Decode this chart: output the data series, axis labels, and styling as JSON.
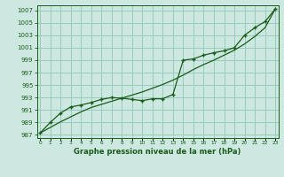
{
  "xlabel": "Graphe pression niveau de la mer (hPa)",
  "background_color": "#cce8e0",
  "grid_color": "#99ccbb",
  "line_color": "#1a5c1a",
  "x_values": [
    0,
    1,
    2,
    3,
    4,
    5,
    6,
    7,
    8,
    9,
    10,
    11,
    12,
    13,
    14,
    15,
    16,
    17,
    18,
    19,
    20,
    21,
    22,
    23
  ],
  "y_data": [
    987.3,
    989.0,
    990.5,
    991.5,
    991.8,
    992.2,
    992.7,
    993.0,
    992.9,
    992.7,
    992.5,
    992.8,
    992.8,
    993.5,
    999.0,
    999.2,
    999.8,
    1000.2,
    1000.5,
    1001.0,
    1003.0,
    1004.2,
    1005.2,
    1007.2
  ],
  "y_trend": [
    987.3,
    988.2,
    989.1,
    989.9,
    990.7,
    991.4,
    991.9,
    992.4,
    992.9,
    993.4,
    993.9,
    994.5,
    995.1,
    995.8,
    996.6,
    997.5,
    998.3,
    999.0,
    999.8,
    1000.6,
    1001.6,
    1002.8,
    1004.2,
    1007.2
  ],
  "yticks": [
    987,
    989,
    991,
    993,
    995,
    997,
    999,
    1001,
    1003,
    1005,
    1007
  ],
  "ylim": [
    986.5,
    1007.8
  ],
  "xlim": [
    -0.3,
    23.3
  ],
  "figsize": [
    3.2,
    2.0
  ],
  "dpi": 100
}
